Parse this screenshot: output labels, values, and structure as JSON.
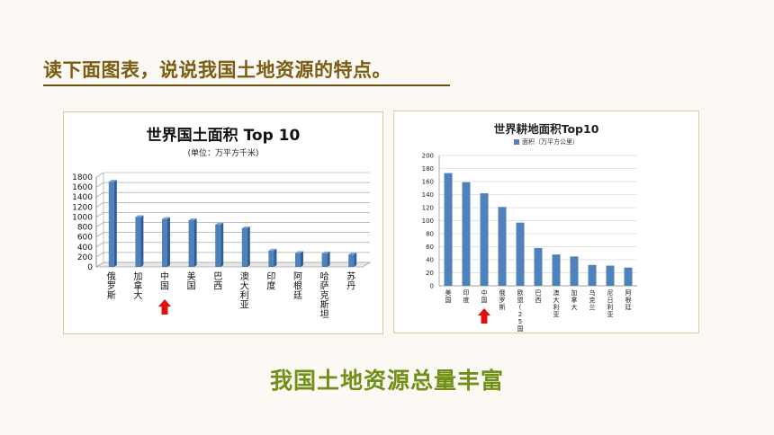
{
  "page": {
    "question": "读下面图表，说说我国土地资源的特点。",
    "conclusion": "我国土地资源总量丰富"
  },
  "colors": {
    "bar": "#4f81bd",
    "arrow": "#e01010",
    "conclusion": "#6f8f16",
    "title": "#7a5c12"
  },
  "chart_data": [
    {
      "type": "bar",
      "title": "世界国土面积 Top 10",
      "subtitle": "(单位：万平方千米)",
      "categories": [
        "俄罗斯",
        "加拿大",
        "中国",
        "美国",
        "巴西",
        "澳大利亚",
        "印度",
        "阿根廷",
        "哈萨克斯坦",
        "苏丹"
      ],
      "values": [
        1708,
        998,
        960,
        937,
        851,
        774,
        329,
        278,
        272,
        250
      ],
      "yticks": [
        0,
        200,
        400,
        600,
        800,
        1000,
        1200,
        1400,
        1600,
        1800
      ],
      "ylim": [
        0,
        1800
      ],
      "highlight": "中国",
      "grid": true
    },
    {
      "type": "bar",
      "title": "世界耕地面积Top10",
      "legend": "面积（万平方公里）",
      "legend_position": "top",
      "categories": [
        "美国",
        "印度",
        "中国",
        "俄罗斯",
        "欧盟(25国)",
        "巴西",
        "澳大利亚",
        "加拿大",
        "乌克兰",
        "尼日利亚",
        "阿根廷"
      ],
      "values": [
        173,
        159,
        142,
        121,
        97,
        58,
        48,
        45,
        32,
        31,
        28
      ],
      "yticks": [
        0,
        20,
        40,
        60,
        80,
        100,
        120,
        140,
        160,
        180,
        200
      ],
      "ylim": [
        0,
        200
      ],
      "highlight": "中国",
      "grid": true
    }
  ]
}
